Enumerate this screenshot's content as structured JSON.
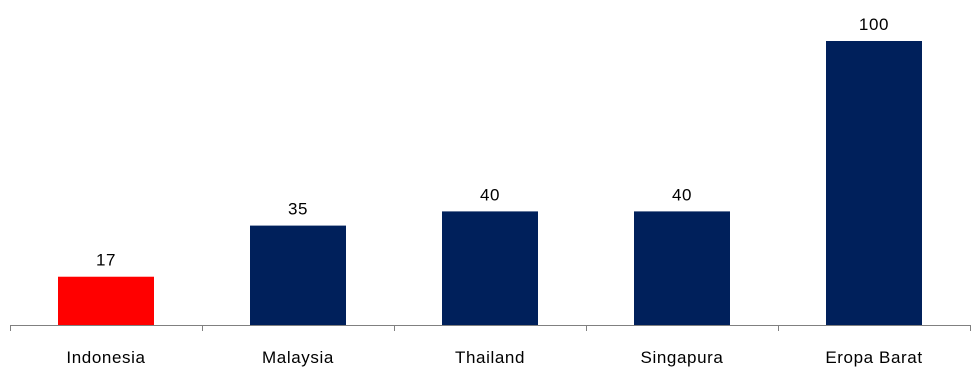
{
  "chart_data": {
    "type": "bar",
    "categories": [
      "Indonesia",
      "Malaysia",
      "Thailand",
      "Singapura",
      "Eropa Barat"
    ],
    "values": [
      17,
      35,
      40,
      40,
      100
    ],
    "data_labels": [
      "17",
      "35",
      "40",
      "40",
      "100"
    ],
    "colors": [
      "#ff0000",
      "#00205b",
      "#00205b",
      "#00205b",
      "#00205b"
    ],
    "title": "",
    "xlabel": "",
    "ylabel": "",
    "ylim": [
      0,
      100
    ],
    "grid": false,
    "legend": "none",
    "axis_color": "#808080"
  }
}
